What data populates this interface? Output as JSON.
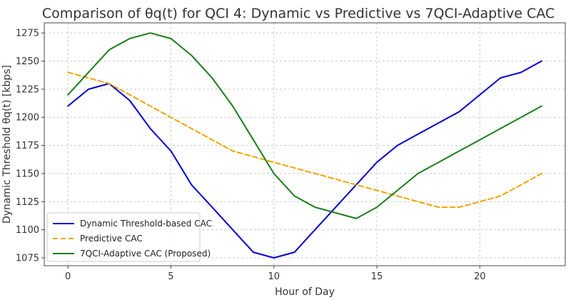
{
  "chart_data": {
    "type": "line",
    "title": "Comparison of θq(t) for QCI 4: Dynamic vs Predictive vs 7QCI-Adaptive CAC",
    "xlabel": "Hour of Day",
    "ylabel": "Dynamic Threshold θq(t) [kbps]",
    "xlim": [
      -1.15,
      24.15
    ],
    "ylim": [
      1068,
      1284
    ],
    "xticks": [
      0,
      5,
      10,
      15,
      20
    ],
    "yticks": [
      1075,
      1100,
      1125,
      1150,
      1175,
      1200,
      1225,
      1250,
      1275
    ],
    "grid": true,
    "legend_position": "lower-left",
    "x": [
      0,
      1,
      2,
      3,
      4,
      5,
      6,
      7,
      8,
      9,
      10,
      11,
      12,
      13,
      14,
      15,
      16,
      17,
      18,
      19,
      20,
      21,
      22,
      23
    ],
    "series": [
      {
        "name": "Dynamic Threshold-based CAC",
        "color": "#0000cc",
        "style": "solid",
        "values": [
          1210,
          1225,
          1230,
          1215,
          1190,
          1170,
          1140,
          1120,
          1100,
          1080,
          1075,
          1080,
          1100,
          1120,
          1140,
          1160,
          1175,
          1185,
          1195,
          1205,
          1220,
          1235,
          1240,
          1250
        ]
      },
      {
        "name": "Predictive CAC",
        "color": "#f0a500",
        "style": "dashed",
        "values": [
          1240,
          1235,
          1230,
          1220,
          1210,
          1200,
          1190,
          1180,
          1170,
          1165,
          1160,
          1155,
          1150,
          1145,
          1140,
          1135,
          1130,
          1125,
          1120,
          1120,
          1125,
          1130,
          1140,
          1150
        ]
      },
      {
        "name": "7QCI-Adaptive CAC (Proposed)",
        "color": "#1a7f1a",
        "style": "solid",
        "values": [
          1220,
          1240,
          1260,
          1270,
          1275,
          1270,
          1255,
          1235,
          1210,
          1180,
          1150,
          1130,
          1120,
          1115,
          1110,
          1120,
          1135,
          1150,
          1160,
          1170,
          1180,
          1190,
          1200,
          1210
        ]
      }
    ]
  }
}
